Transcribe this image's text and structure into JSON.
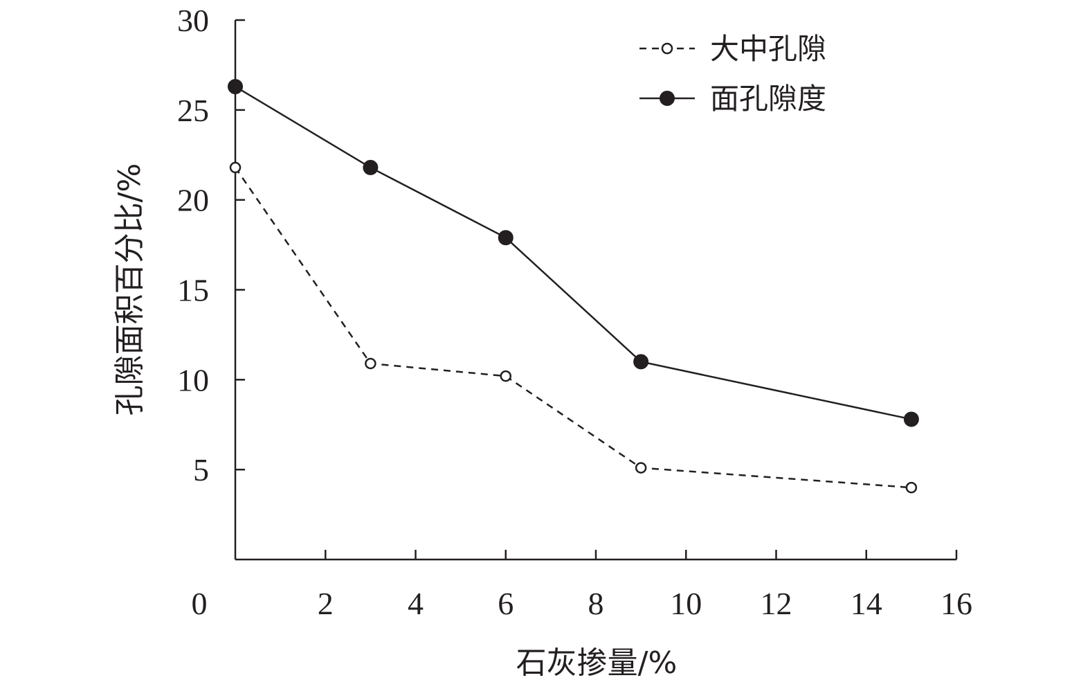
{
  "chart_data": {
    "type": "line",
    "title": "",
    "xlabel": "石灰掺量/%",
    "ylabel": "孔隙面积百分比/%",
    "xlim": [
      0,
      16
    ],
    "ylim": [
      0,
      30
    ],
    "x_ticks": [
      "0",
      "2",
      "4",
      "6",
      "8",
      "10",
      "12",
      "14",
      "16"
    ],
    "y_ticks": [
      "5",
      "10",
      "15",
      "20",
      "25",
      "30"
    ],
    "x": [
      0,
      3,
      6,
      9,
      15
    ],
    "series": [
      {
        "name": "大中孔隙",
        "values": [
          21.8,
          10.9,
          10.2,
          5.1,
          4.0
        ],
        "line_style": "dashed",
        "marker": "open-circle",
        "color": "#231f20"
      },
      {
        "name": "面孔隙度",
        "values": [
          26.3,
          21.8,
          17.9,
          11.0,
          7.8
        ],
        "line_style": "solid",
        "marker": "filled-circle",
        "color": "#231f20"
      }
    ],
    "legend_position": "top-right",
    "grid": false
  }
}
